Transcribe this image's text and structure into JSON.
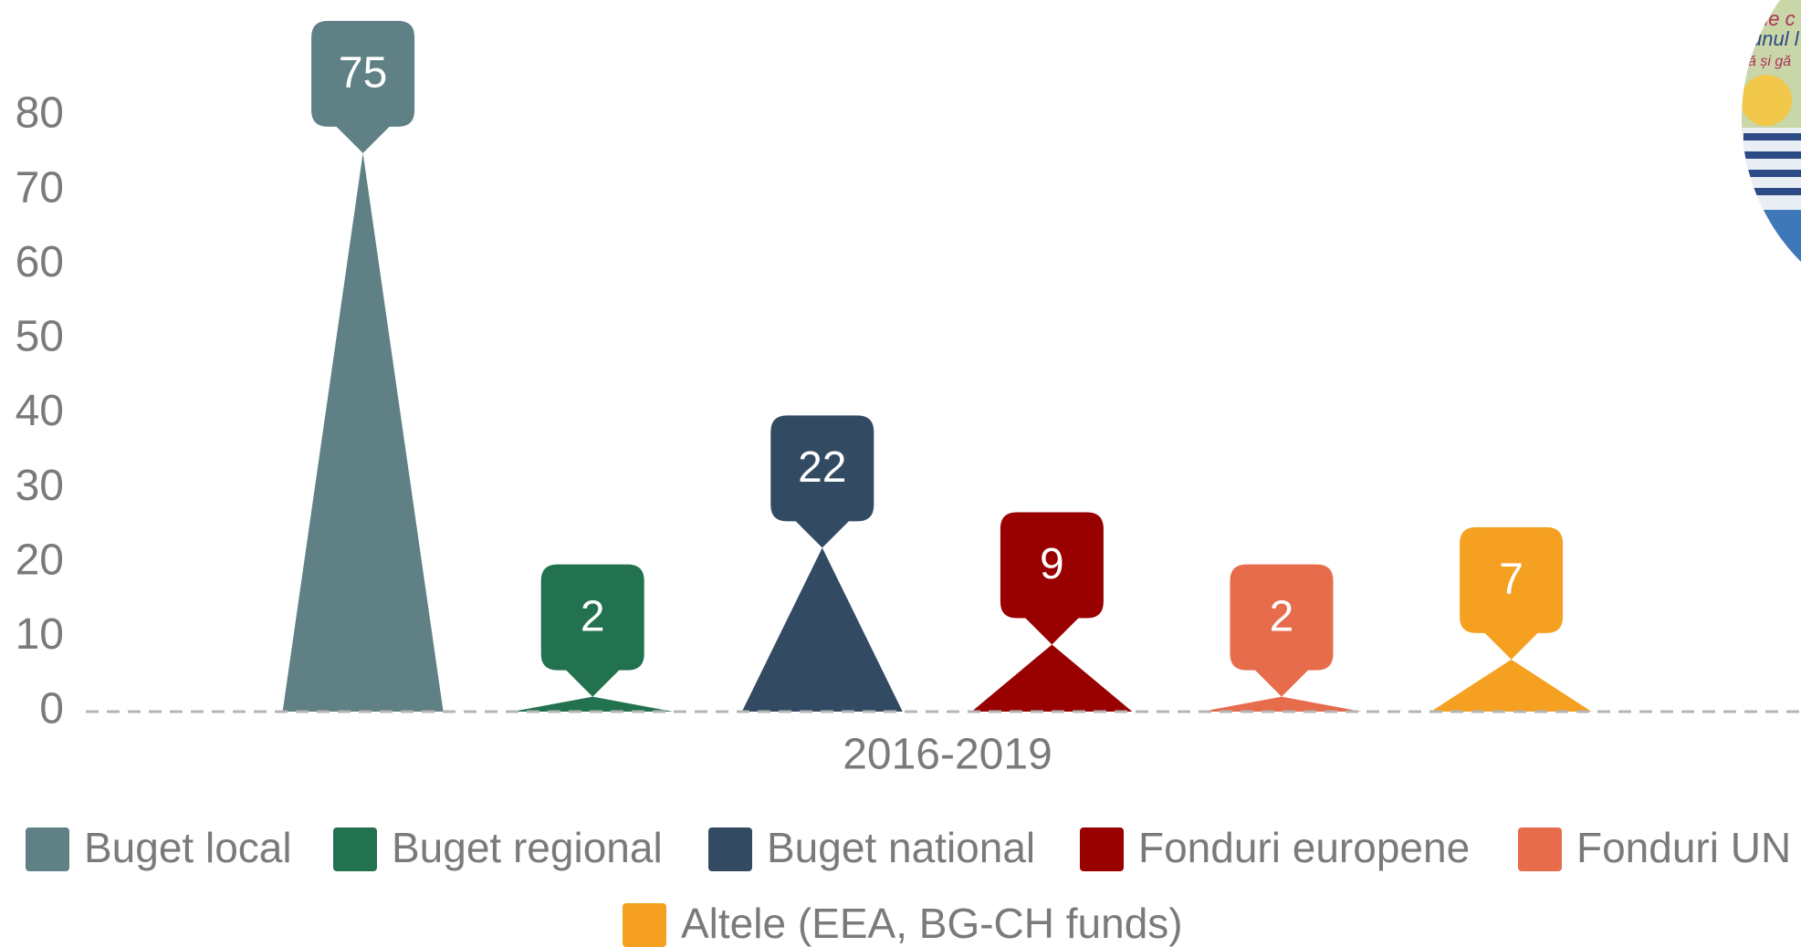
{
  "chart_data": {
    "type": "bar",
    "categories": [
      "2016-2019"
    ],
    "series": [
      {
        "name": "Buget local",
        "color": "#5f8084",
        "values": [
          75
        ]
      },
      {
        "name": "Buget regional",
        "color": "#22714f",
        "values": [
          2
        ]
      },
      {
        "name": "Buget national",
        "color": "#334a63",
        "values": [
          22
        ]
      },
      {
        "name": "Fonduri europene",
        "color": "#990000",
        "values": [
          9
        ]
      },
      {
        "name": "Fonduri UN",
        "color": "#e76c4c",
        "values": [
          2
        ]
      },
      {
        "name": "Altele (EEA, BG-CH funds)",
        "color": "#f5a020",
        "values": [
          7
        ]
      }
    ],
    "ylim": [
      0,
      80
    ],
    "yticks": [
      0,
      10,
      20,
      30,
      40,
      50,
      60,
      70,
      80
    ]
  }
}
